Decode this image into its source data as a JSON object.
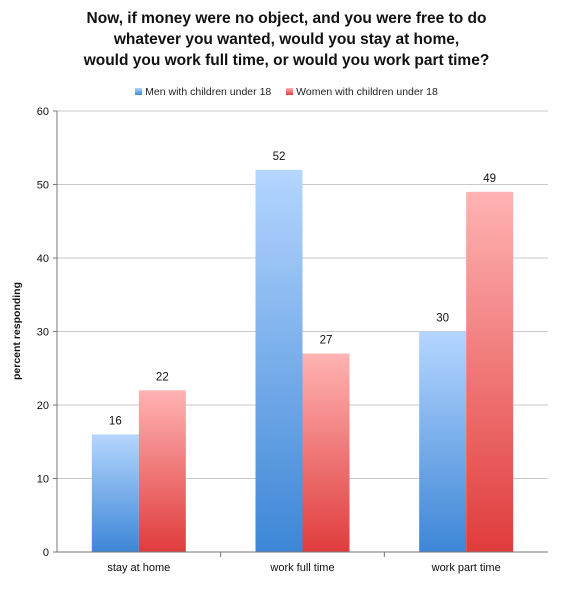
{
  "chart_data": {
    "type": "bar",
    "title_lines": [
      "Now, if money were no object, and you were free to do",
      "whatever you wanted, would you stay at home,",
      "would you work full time, or would you work part time?"
    ],
    "xlabel": "",
    "ylabel": "percent responding",
    "categories": [
      "stay at home",
      "work full time",
      "work part time"
    ],
    "series": [
      {
        "name": "Men with children under 18",
        "values": [
          16,
          52,
          30
        ],
        "color_top": "#b5d6ff",
        "color_bottom": "#3d86d6"
      },
      {
        "name": "Women with children under 18",
        "values": [
          22,
          27,
          49
        ],
        "color_top": "#ffb3b3",
        "color_bottom": "#e03c3c"
      }
    ],
    "ylim": [
      0,
      60
    ],
    "yticks": [
      0,
      10,
      20,
      30,
      40,
      50,
      60
    ],
    "grid": true,
    "legend_position": "top-center"
  }
}
